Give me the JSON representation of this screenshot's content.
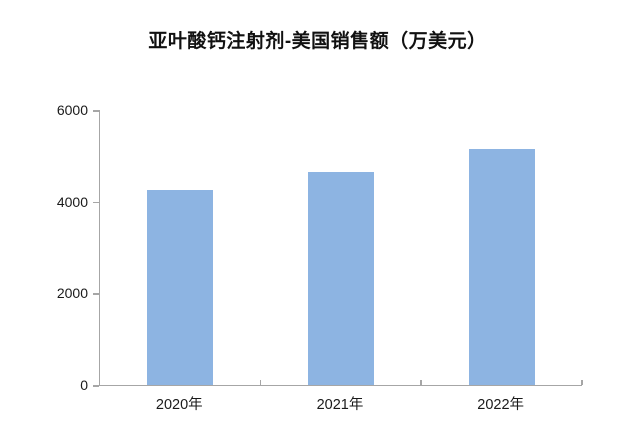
{
  "chart": {
    "title": "亚叶酸钙注射剂-美国销售额（万美元）"
  },
  "chart_data": {
    "type": "bar",
    "title": "亚叶酸钙注射剂-美国销售额（万美元）",
    "categories": [
      "2020年",
      "2021年",
      "2022年"
    ],
    "values": [
      4250,
      4650,
      5150
    ],
    "xlabel": "",
    "ylabel": "",
    "ylim": [
      0,
      6000
    ],
    "yticks": [
      0,
      2000,
      4000,
      6000
    ],
    "legend_position": "none",
    "grid": false,
    "bar_color": "#8DB4E2",
    "axis_color": "#A6A6A6",
    "text_color": "#1A1A1A"
  }
}
